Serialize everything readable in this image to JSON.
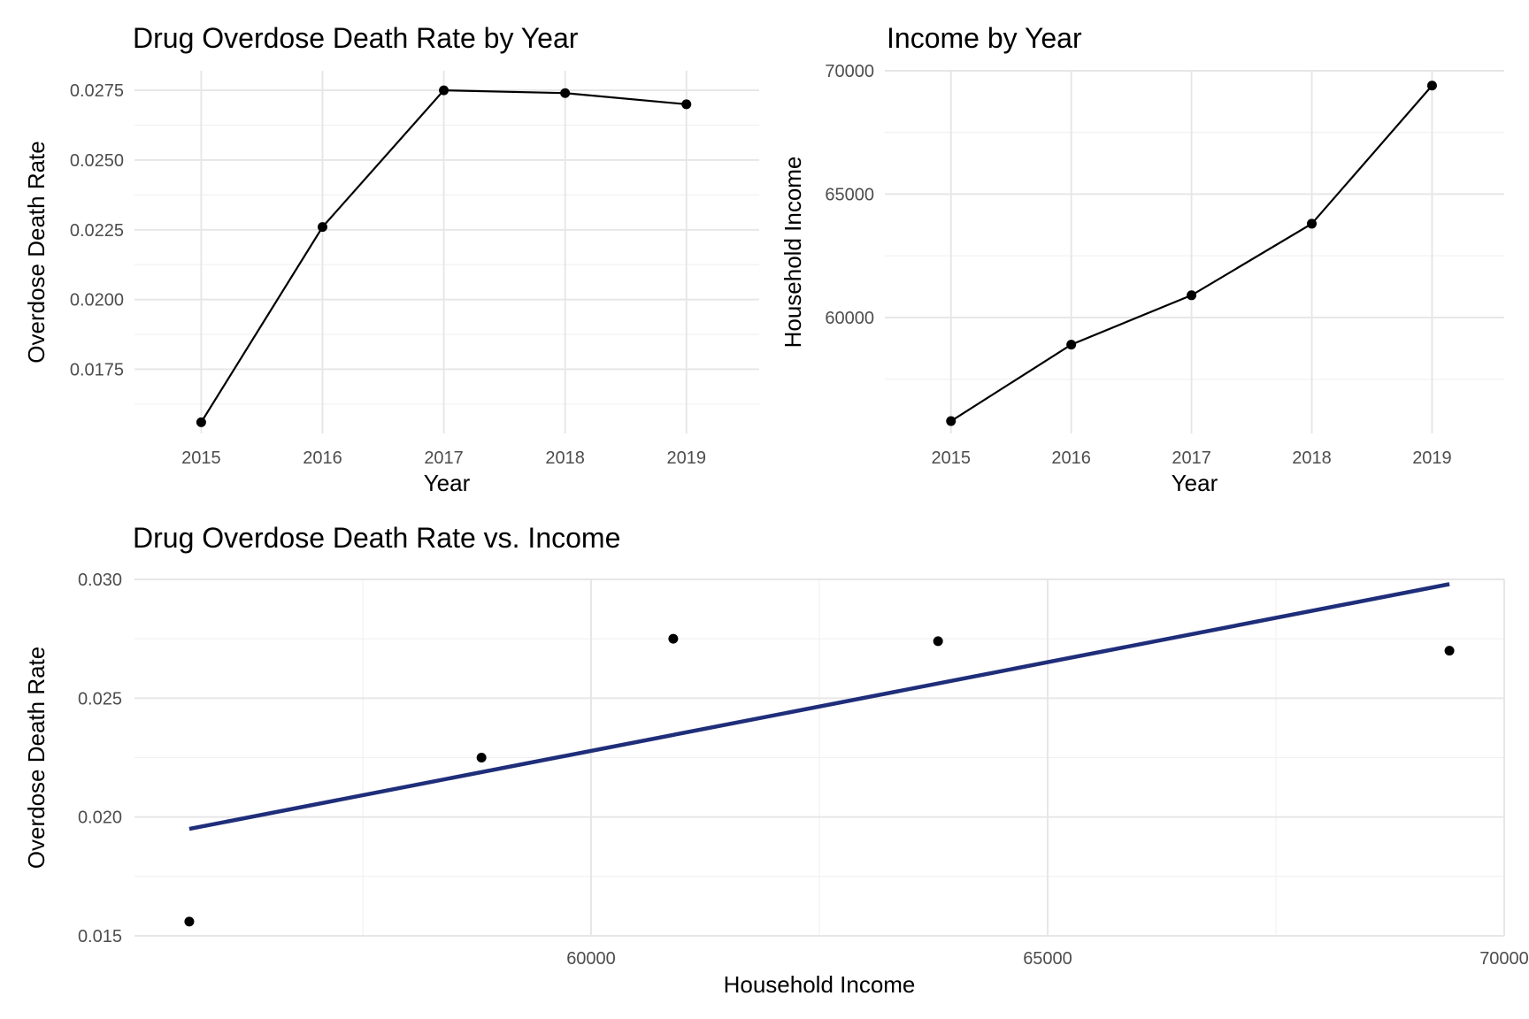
{
  "chart_data": [
    {
      "type": "line",
      "title": "Drug Overdose Death Rate by Year",
      "xlabel": "Year",
      "ylabel": "Overdose Death Rate",
      "x": [
        2015,
        2016,
        2017,
        2018,
        2019
      ],
      "x_tick_labels": [
        "2015",
        "2016",
        "2017",
        "2018",
        "2019"
      ],
      "xlim": [
        2014.45,
        2019.6
      ],
      "y_ticks": [
        0.0175,
        0.02,
        0.0225,
        0.025,
        0.0275
      ],
      "y_tick_labels": [
        "0.0175",
        "0.0200",
        "0.0225",
        "0.0250",
        "0.0275"
      ],
      "ylim": [
        0.0152,
        0.0282
      ],
      "series": [
        {
          "values": [
            0.0156,
            0.0226,
            0.0275,
            0.0274,
            0.027
          ],
          "color": "#000000"
        }
      ],
      "grid": true,
      "legend": "none"
    },
    {
      "type": "line",
      "title": "Income by Year",
      "xlabel": "Year",
      "ylabel": "Household Income",
      "x": [
        2015,
        2016,
        2017,
        2018,
        2019
      ],
      "x_tick_labels": [
        "2015",
        "2016",
        "2017",
        "2018",
        "2019"
      ],
      "xlim": [
        2014.45,
        2019.6
      ],
      "y_ticks": [
        60000,
        65000,
        70000
      ],
      "y_tick_labels": [
        "60000",
        "65000",
        "70000"
      ],
      "ylim": [
        55300,
        70000
      ],
      "series": [
        {
          "values": [
            55800,
            58900,
            60900,
            63800,
            69400
          ],
          "color": "#000000"
        }
      ],
      "grid": true,
      "legend": "none"
    },
    {
      "type": "scatter",
      "title": "Drug Overdose Death Rate vs. Income",
      "xlabel": "Household Income",
      "ylabel": "Overdose Death Rate",
      "x_ticks": [
        60000,
        65000,
        70000
      ],
      "x_tick_labels": [
        "60000",
        "65000",
        "70000"
      ],
      "y_ticks": [
        0.015,
        0.02,
        0.025,
        0.03
      ],
      "y_tick_labels": [
        "0.015",
        "0.020",
        "0.025",
        "0.030"
      ],
      "xlim": [
        55000,
        70000
      ],
      "ylim": [
        0.015,
        0.03
      ],
      "points": [
        {
          "x": 55600,
          "y": 0.0156
        },
        {
          "x": 58800,
          "y": 0.0225
        },
        {
          "x": 60900,
          "y": 0.0275
        },
        {
          "x": 63800,
          "y": 0.0274
        },
        {
          "x": 69400,
          "y": 0.027
        }
      ],
      "trend_line": {
        "x": [
          55600,
          69400
        ],
        "y": [
          0.0195,
          0.0298
        ],
        "color": "#1f2e7a"
      },
      "point_color": "#000000",
      "grid": true,
      "legend": "none"
    }
  ]
}
